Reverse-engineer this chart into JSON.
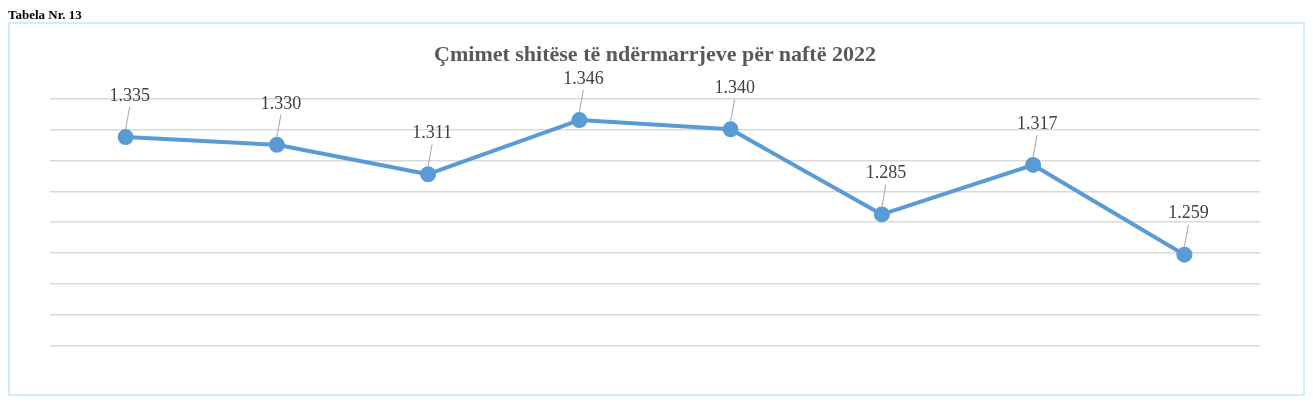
{
  "chart_data": {
    "type": "line",
    "title": "Çmimet shitëse të ndërmarrjeve për naftë 2022",
    "annotations": [
      "Tabela Nr. 13"
    ],
    "categories": [
      null,
      null,
      null,
      null,
      null,
      null,
      null,
      null
    ],
    "series": [
      {
        "color": "#5b9bd5",
        "values": [
          1.335,
          1.33,
          1.311,
          1.346,
          1.34,
          1.285,
          1.317,
          1.259
        ],
        "value_labels": [
          "1.335",
          "1.330",
          "1.311",
          "1.346",
          "1.340",
          "1.285",
          "1.317",
          "1.259"
        ]
      }
    ],
    "ylim": [
      1.2,
      1.36
    ],
    "yticks": [
      1.2,
      1.22,
      1.24,
      1.26,
      1.28,
      1.3,
      1.32,
      1.34,
      1.36
    ],
    "grid": "y",
    "tick_labels": false,
    "marker": "circle",
    "line_style": "solid",
    "legend": false
  }
}
